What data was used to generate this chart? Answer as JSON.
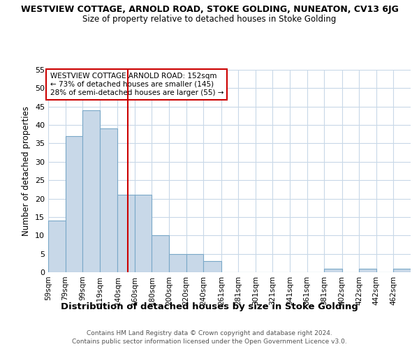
{
  "title": "WESTVIEW COTTAGE, ARNOLD ROAD, STOKE GOLDING, NUNEATON, CV13 6JG",
  "subtitle": "Size of property relative to detached houses in Stoke Golding",
  "xlabel": "Distribution of detached houses by size in Stoke Golding",
  "ylabel": "Number of detached properties",
  "bar_edges": [
    59,
    79,
    99,
    119,
    140,
    160,
    180,
    200,
    220,
    240,
    261,
    281,
    301,
    321,
    341,
    361,
    381,
    402,
    422,
    442,
    462
  ],
  "bar_heights": [
    14,
    37,
    44,
    39,
    21,
    21,
    10,
    5,
    5,
    3,
    0,
    0,
    0,
    0,
    0,
    0,
    1,
    0,
    1,
    0,
    1
  ],
  "bar_labels": [
    "59sqm",
    "79sqm",
    "99sqm",
    "119sqm",
    "140sqm",
    "160sqm",
    "180sqm",
    "200sqm",
    "220sqm",
    "240sqm",
    "261sqm",
    "281sqm",
    "301sqm",
    "321sqm",
    "341sqm",
    "361sqm",
    "381sqm",
    "402sqm",
    "422sqm",
    "442sqm",
    "462sqm"
  ],
  "bar_color": "#c8d8e8",
  "bar_edge_color": "#7aa8c8",
  "vline_x": 152,
  "vline_color": "#cc0000",
  "ylim": [
    0,
    55
  ],
  "yticks": [
    0,
    5,
    10,
    15,
    20,
    25,
    30,
    35,
    40,
    45,
    50,
    55
  ],
  "annotation_text": "WESTVIEW COTTAGE ARNOLD ROAD: 152sqm\n← 73% of detached houses are smaller (145)\n28% of semi-detached houses are larger (55) →",
  "annotation_box_color": "#ffffff",
  "annotation_border_color": "#cc0000",
  "footer1": "Contains HM Land Registry data © Crown copyright and database right 2024.",
  "footer2": "Contains public sector information licensed under the Open Government Licence v3.0.",
  "background_color": "#ffffff",
  "grid_color": "#c8d8e8"
}
